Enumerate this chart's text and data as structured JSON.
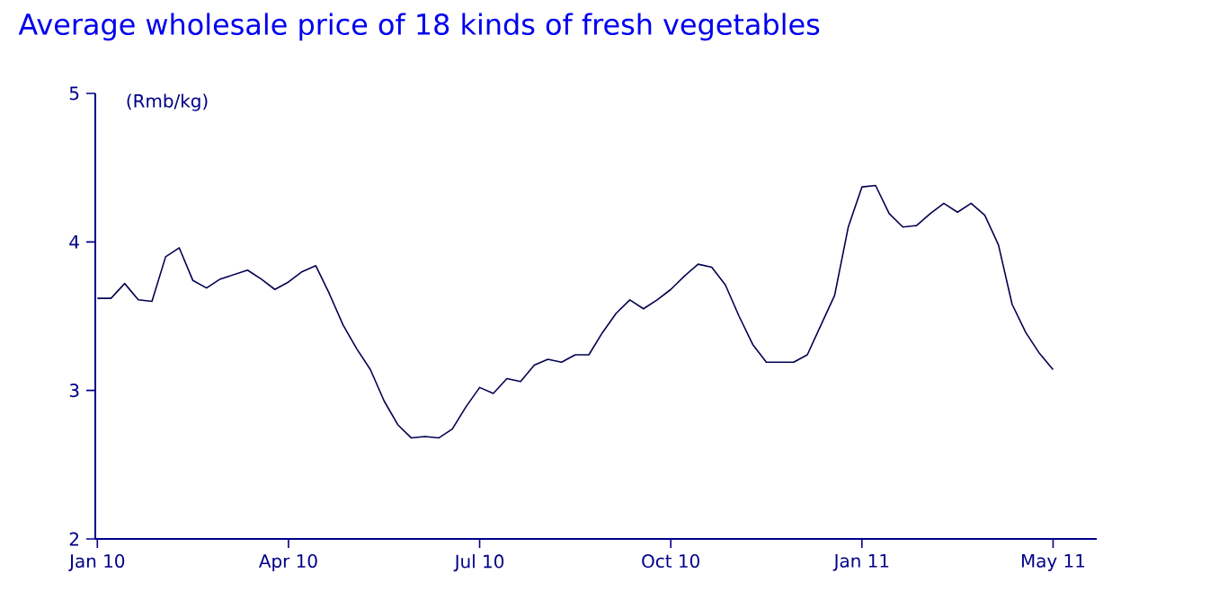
{
  "chart_data": {
    "type": "line",
    "title": "Average wholesale price of 18 kinds of fresh vegetables",
    "ylabel": "(Rmb/kg)",
    "categories": [
      "Jan 10",
      null,
      null,
      null,
      null,
      null,
      null,
      null,
      null,
      null,
      null,
      null,
      null,
      null,
      "Apr 10",
      null,
      null,
      null,
      null,
      null,
      null,
      null,
      null,
      null,
      null,
      null,
      null,
      null,
      "Jul 10",
      null,
      null,
      null,
      null,
      null,
      null,
      null,
      null,
      null,
      null,
      null,
      null,
      null,
      "Oct 10",
      null,
      null,
      null,
      null,
      null,
      null,
      null,
      null,
      null,
      null,
      null,
      null,
      null,
      "Jan 11",
      null,
      null,
      null,
      null,
      null,
      null,
      null,
      null,
      null,
      null,
      null,
      null,
      null,
      "May 11"
    ],
    "series": [
      {
        "color": "#000050",
        "values": [
          3.62,
          3.62,
          3.72,
          3.61,
          3.6,
          3.9,
          3.96,
          3.74,
          3.69,
          3.75,
          3.78,
          3.81,
          3.75,
          3.68,
          3.73,
          3.8,
          3.84,
          3.65,
          3.44,
          3.28,
          3.14,
          2.93,
          2.77,
          2.68,
          2.69,
          2.68,
          2.74,
          2.89,
          3.02,
          2.98,
          3.08,
          3.06,
          3.17,
          3.21,
          3.19,
          3.24,
          3.24,
          3.39,
          3.52,
          3.61,
          3.55,
          3.61,
          3.68,
          3.77,
          3.85,
          3.83,
          3.71,
          3.5,
          3.31,
          3.19,
          3.19,
          3.19,
          3.24,
          3.44,
          3.64,
          4.1,
          4.37,
          4.38,
          4.19,
          4.1,
          4.11,
          4.19,
          4.26,
          4.2,
          4.26,
          4.18,
          3.98,
          3.58,
          3.39,
          3.25,
          3.14
        ]
      }
    ],
    "ylim": [
      2,
      5
    ],
    "yticks": [
      2,
      3,
      4,
      5
    ],
    "marker": "none",
    "line_style": "solid"
  }
}
